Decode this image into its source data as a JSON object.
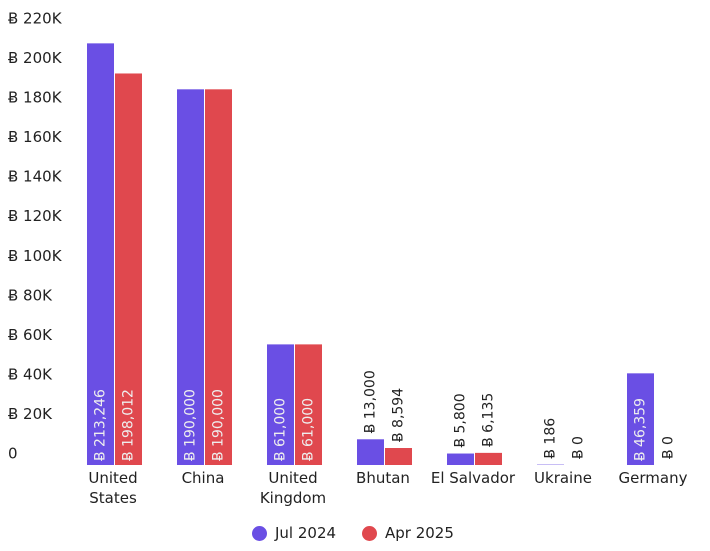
{
  "chart_data": {
    "type": "bar",
    "categories": [
      "United States",
      "China",
      "United Kingdom",
      "Bhutan",
      "El Salvador",
      "Ukraine",
      "Germany"
    ],
    "series": [
      {
        "name": "Jul 2024",
        "color": "#6a4fe4",
        "values": [
          213246,
          190000,
          61000,
          13000,
          5800,
          186,
          46359
        ],
        "value_labels": [
          "Ƀ 213,246",
          "Ƀ 190,000",
          "Ƀ 61,000",
          "Ƀ 13,000",
          "Ƀ 5,800",
          "Ƀ 186",
          "Ƀ 46,359"
        ]
      },
      {
        "name": "Apr 2025",
        "color": "#e0484e",
        "values": [
          198012,
          190000,
          61000,
          8594,
          6135,
          0,
          0
        ],
        "value_labels": [
          "Ƀ 198,012",
          "Ƀ 190,000",
          "Ƀ 61,000",
          "Ƀ 8,594",
          "Ƀ 6,135",
          "Ƀ 0",
          "Ƀ 0"
        ]
      }
    ],
    "ylim": [
      0,
      220000
    ],
    "yticks": [
      0,
      {
        "value": 20000,
        "label": "Ƀ 20K"
      },
      {
        "value": 40000,
        "label": "Ƀ 40K"
      },
      {
        "value": 60000,
        "label": "Ƀ 60K"
      },
      {
        "value": 80000,
        "label": "Ƀ 80K"
      },
      {
        "value": 100000,
        "label": "Ƀ 100K"
      },
      {
        "value": 120000,
        "label": "Ƀ 120K"
      },
      {
        "value": 140000,
        "label": "Ƀ 140K"
      },
      {
        "value": 160000,
        "label": "Ƀ 160K"
      },
      {
        "value": 180000,
        "label": "Ƀ 180K"
      },
      {
        "value": 200000,
        "label": "Ƀ 200K"
      },
      {
        "value": 220000,
        "label": "Ƀ 220K"
      }
    ],
    "legend": "bottom"
  }
}
